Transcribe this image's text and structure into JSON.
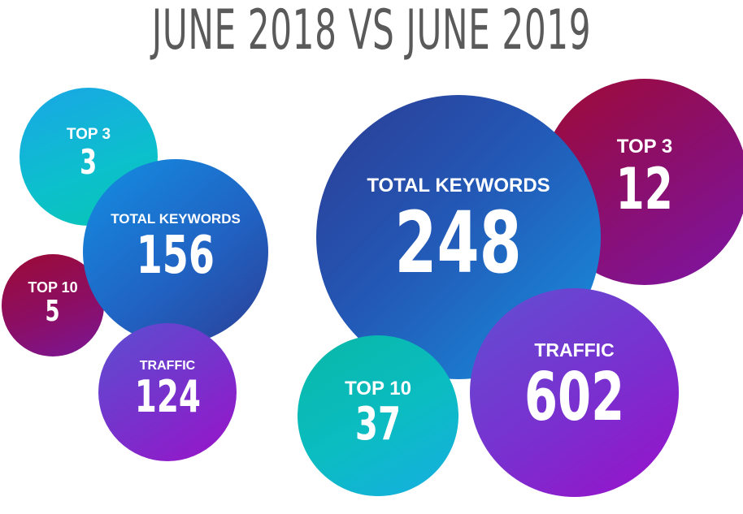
{
  "title": "JUNE 2018 VS JUNE 2019",
  "june_2018": {
    "top3": {
      "label": "TOP 3",
      "value": "3"
    },
    "total_keywords": {
      "label": "TOTAL KEYWORDS",
      "value": "156"
    },
    "top10": {
      "label": "TOP 10",
      "value": "5"
    },
    "traffic": {
      "label": "TRAFFIC",
      "value": "124"
    }
  },
  "june_2019": {
    "top3": {
      "label": "TOP 3",
      "value": "12"
    },
    "total_keywords": {
      "label": "TOTAL KEYWORDS",
      "value": "248"
    },
    "top10": {
      "label": "TOP 10",
      "value": "37"
    },
    "traffic": {
      "label": "TRAFFIC",
      "value": "602"
    }
  },
  "colors": {
    "title": "#5a5a5a",
    "teal": "#0cc0cc",
    "blue": "#2064c4",
    "crimson": "#8a0f6a",
    "violet": "#7a2fcc"
  }
}
